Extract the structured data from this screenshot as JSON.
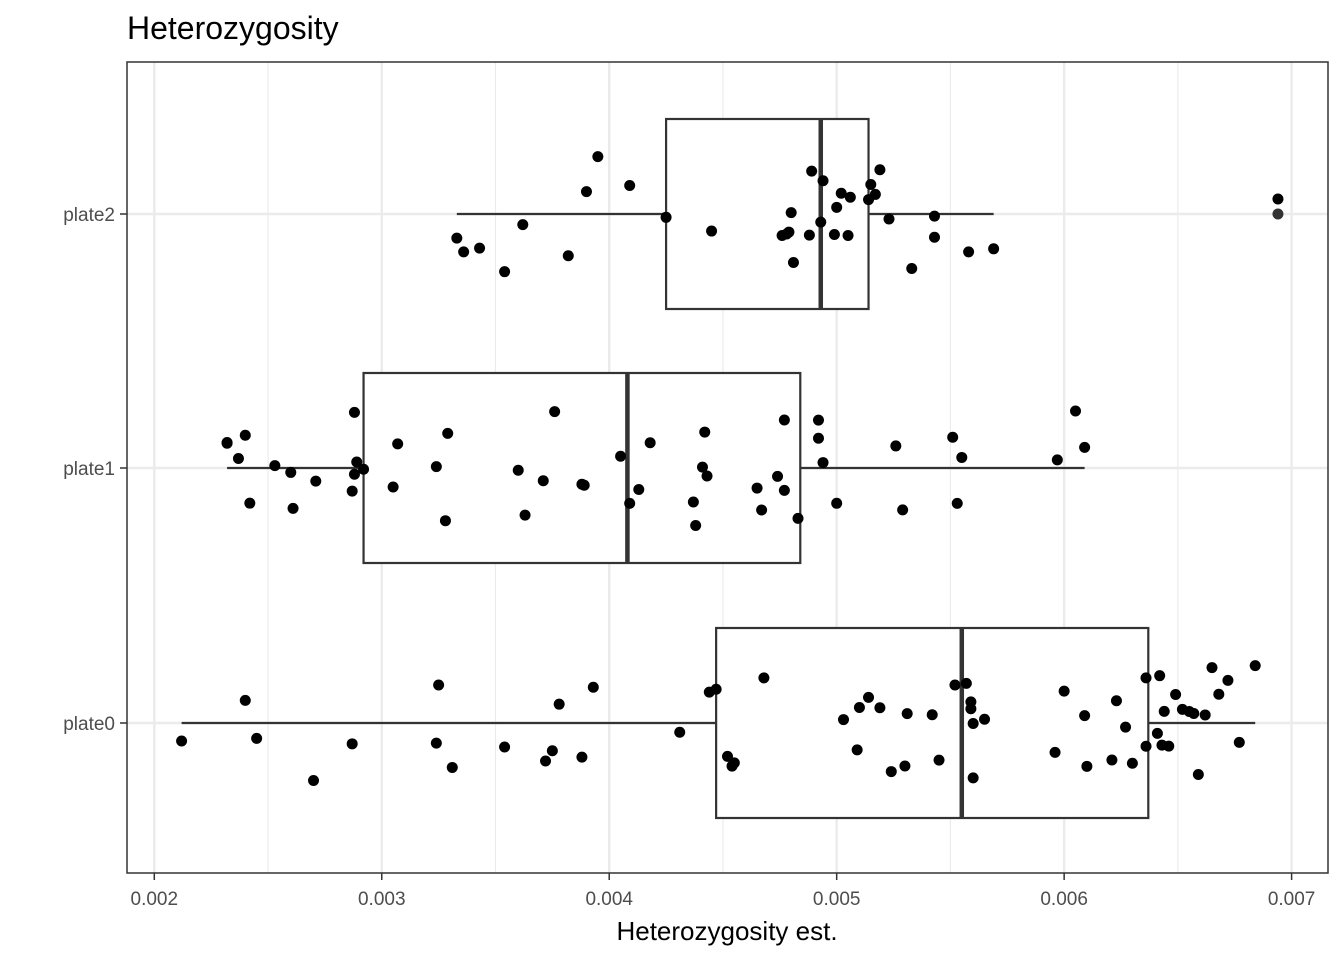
{
  "chart_data": {
    "type": "boxplot",
    "title": "Heterozygosity",
    "xlabel": "Heterozygosity est.",
    "ylabel": "",
    "xlim": [
      0.00188,
      0.00716
    ],
    "x_ticks": [
      "0.002",
      "0.003",
      "0.004",
      "0.005",
      "0.006",
      "0.007"
    ],
    "x_tick_values": [
      0.002,
      0.003,
      0.004,
      0.005,
      0.006,
      0.007
    ],
    "categories": [
      "plate0",
      "plate1",
      "plate2"
    ],
    "grid": true,
    "colors": {
      "points": "#000000",
      "box": "#333333",
      "grid": "#ebebeb",
      "panel_border": "#333333",
      "outlier": "#333333"
    },
    "boxes": [
      {
        "category": "plate0",
        "whisker_low": 0.00212,
        "q1": 0.00447,
        "median": 0.00555,
        "q3": 0.00637,
        "whisker_high": 0.00684,
        "outliers": []
      },
      {
        "category": "plate1",
        "whisker_low": 0.00232,
        "q1": 0.00292,
        "median": 0.00408,
        "q3": 0.00484,
        "whisker_high": 0.00609,
        "outliers": []
      },
      {
        "category": "plate2",
        "whisker_low": 0.00333,
        "q1": 0.00425,
        "median": 0.00493,
        "q3": 0.00514,
        "whisker_high": 0.00569,
        "outliers": [
          0.00694
        ]
      }
    ],
    "points": [
      {
        "category": "plate0",
        "x": [
          0.00212,
          0.0024,
          0.00245,
          0.0027,
          0.00287,
          0.00324,
          0.00325,
          0.00331,
          0.00354,
          0.00372,
          0.00375,
          0.00378,
          0.00388,
          0.00393,
          0.00431,
          0.00444,
          0.00447,
          0.00452,
          0.00454,
          0.00455,
          0.00468,
          0.00503,
          0.00509,
          0.0051,
          0.00514,
          0.00519,
          0.00524,
          0.0053,
          0.00531,
          0.00542,
          0.00545,
          0.00552,
          0.00557,
          0.00559,
          0.00559,
          0.0056,
          0.0056,
          0.00565,
          0.00596,
          0.006,
          0.00609,
          0.0061,
          0.00621,
          0.00623,
          0.00627,
          0.0063,
          0.00636,
          0.00636,
          0.00641,
          0.00642,
          0.00643,
          0.00644,
          0.00646,
          0.00649,
          0.00652,
          0.00655,
          0.00657,
          0.00659,
          0.00662,
          0.00665,
          0.00668,
          0.00672,
          0.00677,
          0.00684
        ]
      },
      {
        "category": "plate1",
        "x": [
          0.00232,
          0.00232,
          0.00237,
          0.0024,
          0.00242,
          0.00253,
          0.0026,
          0.00261,
          0.00271,
          0.00287,
          0.00288,
          0.00288,
          0.00289,
          0.00292,
          0.00305,
          0.00307,
          0.00324,
          0.00328,
          0.00329,
          0.0036,
          0.00363,
          0.00371,
          0.00376,
          0.00388,
          0.00389,
          0.00405,
          0.00409,
          0.00413,
          0.00418,
          0.00437,
          0.00438,
          0.00441,
          0.00442,
          0.00443,
          0.00465,
          0.00467,
          0.00474,
          0.00477,
          0.00477,
          0.00483,
          0.00492,
          0.00492,
          0.00494,
          0.005,
          0.00526,
          0.00529,
          0.00551,
          0.00553,
          0.00555,
          0.00597,
          0.00605,
          0.00609
        ]
      },
      {
        "category": "plate2",
        "x": [
          0.00333,
          0.00336,
          0.00343,
          0.00354,
          0.00362,
          0.00382,
          0.0039,
          0.00395,
          0.00409,
          0.00425,
          0.00445,
          0.00476,
          0.00478,
          0.0048,
          0.00479,
          0.00481,
          0.00488,
          0.00489,
          0.00493,
          0.00494,
          0.00499,
          0.005,
          0.00502,
          0.00505,
          0.00506,
          0.00514,
          0.00515,
          0.00517,
          0.00519,
          0.00523,
          0.00533,
          0.00543,
          0.00543,
          0.00558,
          0.00569
        ]
      }
    ]
  }
}
